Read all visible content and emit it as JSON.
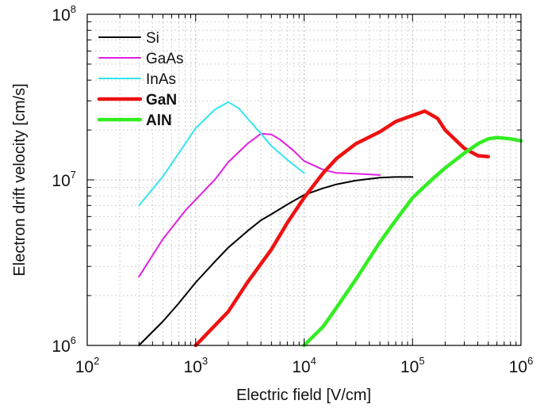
{
  "chart_data": {
    "type": "line",
    "title": "",
    "xlabel": "Electric field [V/cm]",
    "ylabel": "Electron drift velocity [cm/s]",
    "x_scale": "log",
    "y_scale": "log",
    "xlim": [
      100,
      1000000
    ],
    "ylim": [
      1000000,
      100000000
    ],
    "grid": true,
    "legend_position": "top-left",
    "x_ticks": [
      {
        "base": "10",
        "exp": "2",
        "value": 100
      },
      {
        "base": "10",
        "exp": "3",
        "value": 1000
      },
      {
        "base": "10",
        "exp": "4",
        "value": 10000
      },
      {
        "base": "10",
        "exp": "5",
        "value": 100000
      },
      {
        "base": "10",
        "exp": "6",
        "value": 1000000
      }
    ],
    "y_ticks": [
      {
        "base": "10",
        "exp": "6",
        "value": 1000000
      },
      {
        "base": "10",
        "exp": "7",
        "value": 10000000
      },
      {
        "base": "10",
        "exp": "8",
        "value": 100000000
      }
    ],
    "series": [
      {
        "name": "Si",
        "color": "#000000",
        "bold": false,
        "points": [
          [
            300,
            1000000
          ],
          [
            500,
            1400000
          ],
          [
            700,
            1800000
          ],
          [
            1000,
            2400000
          ],
          [
            1500,
            3200000
          ],
          [
            2000,
            3900000
          ],
          [
            3000,
            4900000
          ],
          [
            4000,
            5700000
          ],
          [
            5000,
            6200000
          ],
          [
            7000,
            7100000
          ],
          [
            10000,
            8100000
          ],
          [
            15000,
            8900000
          ],
          [
            20000,
            9400000
          ],
          [
            30000,
            9900000
          ],
          [
            50000,
            10300000
          ],
          [
            70000,
            10400000
          ],
          [
            100000,
            10400000
          ]
        ]
      },
      {
        "name": "GaAs",
        "color": "#e020e0",
        "bold": false,
        "points": [
          [
            300,
            2600000
          ],
          [
            500,
            4400000
          ],
          [
            800,
            6500000
          ],
          [
            1000,
            7600000
          ],
          [
            1500,
            10000000
          ],
          [
            2000,
            12800000
          ],
          [
            3000,
            16500000
          ],
          [
            4000,
            19000000
          ],
          [
            5000,
            18800000
          ],
          [
            6000,
            17500000
          ],
          [
            8000,
            15000000
          ],
          [
            10000,
            13000000
          ],
          [
            15000,
            11500000
          ],
          [
            20000,
            11000000
          ],
          [
            30000,
            10900000
          ],
          [
            50000,
            10700000
          ]
        ]
      },
      {
        "name": "InAs",
        "color": "#33e6ee",
        "bold": false,
        "points": [
          [
            300,
            7000000
          ],
          [
            500,
            10500000
          ],
          [
            800,
            16500000
          ],
          [
            1000,
            20500000
          ],
          [
            1500,
            26500000
          ],
          [
            2000,
            29500000
          ],
          [
            2500,
            27000000
          ],
          [
            3000,
            23500000
          ],
          [
            4000,
            19000000
          ],
          [
            5000,
            16000000
          ],
          [
            7000,
            13200000
          ],
          [
            10000,
            11000000
          ]
        ]
      },
      {
        "name": "GaN",
        "color": "#ee1111",
        "bold": true,
        "points": [
          [
            1000,
            1000000
          ],
          [
            2000,
            1600000
          ],
          [
            3000,
            2400000
          ],
          [
            5000,
            3800000
          ],
          [
            7000,
            5500000
          ],
          [
            10000,
            7800000
          ],
          [
            15000,
            11000000
          ],
          [
            20000,
            13500000
          ],
          [
            30000,
            16500000
          ],
          [
            50000,
            19500000
          ],
          [
            70000,
            22500000
          ],
          [
            100000,
            24500000
          ],
          [
            130000,
            26000000
          ],
          [
            170000,
            23500000
          ],
          [
            200000,
            20000000
          ],
          [
            300000,
            15500000
          ],
          [
            400000,
            14000000
          ],
          [
            500000,
            13800000
          ]
        ]
      },
      {
        "name": "AlN",
        "color": "#33ee22",
        "bold": true,
        "points": [
          [
            10000,
            1000000
          ],
          [
            15000,
            1300000
          ],
          [
            20000,
            1700000
          ],
          [
            30000,
            2500000
          ],
          [
            50000,
            4200000
          ],
          [
            70000,
            5700000
          ],
          [
            100000,
            7800000
          ],
          [
            150000,
            10000000
          ],
          [
            200000,
            11800000
          ],
          [
            300000,
            14500000
          ],
          [
            400000,
            16500000
          ],
          [
            500000,
            17700000
          ],
          [
            600000,
            18000000
          ],
          [
            800000,
            17700000
          ],
          [
            1000000,
            17200000
          ]
        ]
      }
    ]
  }
}
